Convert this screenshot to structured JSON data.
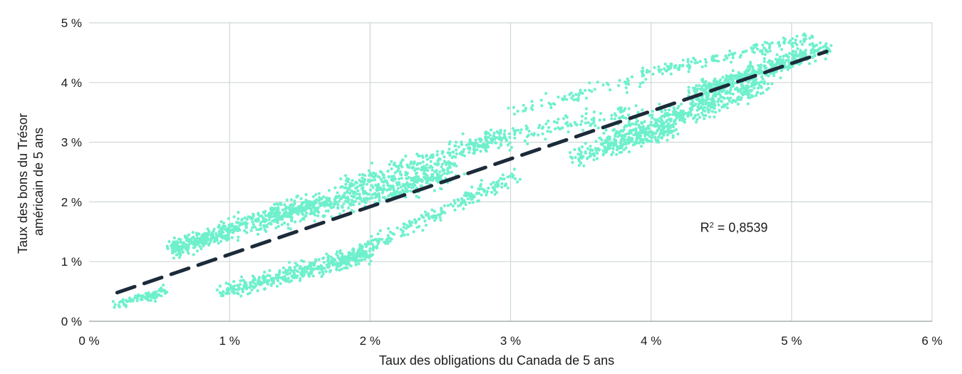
{
  "chart_data": {
    "type": "scatter",
    "title": "",
    "xlabel": "Taux des obligations du Canada de 5 ans",
    "ylabel_lines": [
      "Taux des bons du Trésor",
      "américain de 5 ans"
    ],
    "xlim": [
      0,
      6
    ],
    "ylim": [
      0,
      5
    ],
    "x_ticks": [
      0,
      1,
      2,
      3,
      4,
      5,
      6
    ],
    "y_ticks": [
      0,
      1,
      2,
      3,
      4,
      5
    ],
    "x_tick_labels": [
      "0 %",
      "1 %",
      "2 %",
      "3 %",
      "4 %",
      "5 %",
      "6 %"
    ],
    "y_tick_labels": [
      "0 %",
      "1 %",
      "2 %",
      "3 %",
      "4 %",
      "5 %"
    ],
    "grid": true,
    "annotation": {
      "prefix": "R",
      "superscript": "2",
      "suffix": " = 0,8539",
      "at": [
        4.35,
        1.5
      ]
    },
    "trendline": {
      "x": [
        0.2,
        5.25
      ],
      "y": [
        0.48,
        4.52
      ],
      "style": "dashed"
    },
    "series": [
      {
        "clusters": [
          {
            "x": [
              0.2,
              0.55
            ],
            "y": [
              0.28,
              0.5
            ],
            "n": 90,
            "spread": 0.04
          },
          {
            "x": [
              0.58,
              1.05
            ],
            "y": [
              1.2,
              1.55
            ],
            "n": 280,
            "spread": 0.07
          },
          {
            "x": [
              1.0,
              1.65
            ],
            "y": [
              1.55,
              2.0
            ],
            "n": 180,
            "spread": 0.08
          },
          {
            "x": [
              1.25,
              2.6
            ],
            "y": [
              1.7,
              2.5
            ],
            "n": 520,
            "spread": 0.1
          },
          {
            "x": [
              1.8,
              2.95
            ],
            "y": [
              2.25,
              3.1
            ],
            "n": 260,
            "spread": 0.09
          },
          {
            "x": [
              0.95,
              2.0
            ],
            "y": [
              0.5,
              1.15
            ],
            "n": 380,
            "spread": 0.07
          },
          {
            "x": [
              1.7,
              3.05
            ],
            "y": [
              0.9,
              2.45
            ],
            "n": 260,
            "spread": 0.06
          },
          {
            "x": [
              2.65,
              3.9
            ],
            "y": [
              2.9,
              3.55
            ],
            "n": 150,
            "spread": 0.08
          },
          {
            "x": [
              3.4,
              4.15
            ],
            "y": [
              2.7,
              3.2
            ],
            "n": 180,
            "spread": 0.07
          },
          {
            "x": [
              3.7,
              4.8
            ],
            "y": [
              3.0,
              4.0
            ],
            "n": 500,
            "spread": 0.1
          },
          {
            "x": [
              4.3,
              5.25
            ],
            "y": [
              3.8,
              4.6
            ],
            "n": 420,
            "spread": 0.07
          },
          {
            "x": [
              3.0,
              4.0
            ],
            "y": [
              3.5,
              4.1
            ],
            "n": 70,
            "spread": 0.06
          },
          {
            "x": [
              3.9,
              4.6
            ],
            "y": [
              4.15,
              4.45
            ],
            "n": 80,
            "spread": 0.05
          },
          {
            "x": [
              4.6,
              5.15
            ],
            "y": [
              4.5,
              4.75
            ],
            "n": 70,
            "spread": 0.05
          }
        ]
      }
    ],
    "colors": {
      "points": "#6ff0cd",
      "trendline": "#1c2b3a",
      "grid": "#cfd8d6",
      "axis": "#a8b2b0"
    }
  }
}
